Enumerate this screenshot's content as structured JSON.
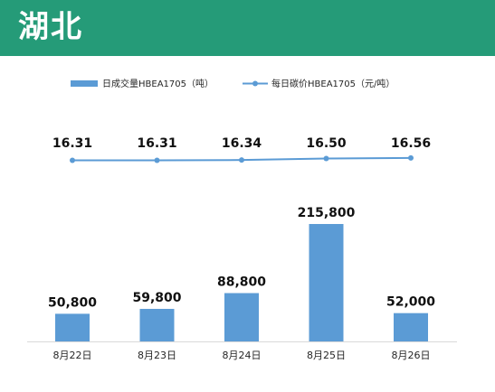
{
  "header": {
    "title": "湖北"
  },
  "colors": {
    "header_bg": "#259b78",
    "bar": "#5b9bd5",
    "line": "#5b9bd5"
  },
  "chart_data": {
    "type": "bar+line",
    "categories": [
      "8月22日",
      "8月23日",
      "8月24日",
      "8月25日",
      "8月26日"
    ],
    "series": [
      {
        "name": "日成交量HBEA1705（吨）",
        "type": "bar",
        "values": [
          50800,
          59800,
          88800,
          215800,
          52000
        ],
        "labels": [
          "50,800",
          "59,800",
          "88,800",
          "215,800",
          "52,000"
        ]
      },
      {
        "name": "每日碳价HBEA1705（元/吨）",
        "type": "line",
        "values": [
          16.31,
          16.31,
          16.34,
          16.5,
          16.56
        ],
        "labels": [
          "16.31",
          "16.31",
          "16.34",
          "16.50",
          "16.56"
        ]
      }
    ],
    "legend_position": "top",
    "grid": false
  }
}
